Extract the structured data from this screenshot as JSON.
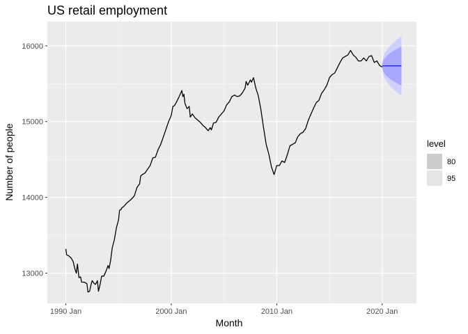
{
  "chart_data": {
    "type": "line",
    "title": "US retail employment",
    "xlabel": "Month",
    "ylabel": "Number of people",
    "x_ticks": [
      {
        "label": "1990 Jan",
        "value": 1990.0
      },
      {
        "label": "2000 Jan",
        "value": 2000.0
      },
      {
        "label": "2010 Jan",
        "value": 2010.0
      },
      {
        "label": "2020 Jan",
        "value": 2020.0
      }
    ],
    "y_ticks": [
      {
        "label": "13000",
        "value": 13000
      },
      {
        "label": "14000",
        "value": 14000
      },
      {
        "label": "15000",
        "value": 15000
      },
      {
        "label": "16000",
        "value": 16000
      }
    ],
    "xlim": [
      1988.25,
      2023.25
    ],
    "ylim": [
      12600,
      16320
    ],
    "grid": true,
    "series": [
      {
        "color": "#000000",
        "points": [
          [
            1990.0,
            13320
          ],
          [
            1990.08,
            13240
          ],
          [
            1990.25,
            13230
          ],
          [
            1990.5,
            13200
          ],
          [
            1990.7,
            13150
          ],
          [
            1990.85,
            13060
          ],
          [
            1991.0,
            13000
          ],
          [
            1991.1,
            13120
          ],
          [
            1991.25,
            12940
          ],
          [
            1991.4,
            12950
          ],
          [
            1991.5,
            12880
          ],
          [
            1991.75,
            12880
          ],
          [
            1992.0,
            12860
          ],
          [
            1992.1,
            12750
          ],
          [
            1992.25,
            12760
          ],
          [
            1992.4,
            12850
          ],
          [
            1992.5,
            12900
          ],
          [
            1992.65,
            12870
          ],
          [
            1992.8,
            12850
          ],
          [
            1992.9,
            12870
          ],
          [
            1993.0,
            12900
          ],
          [
            1993.1,
            12760
          ],
          [
            1993.25,
            12850
          ],
          [
            1993.4,
            12960
          ],
          [
            1993.6,
            12960
          ],
          [
            1993.8,
            13020
          ],
          [
            1994.0,
            13100
          ],
          [
            1994.1,
            13060
          ],
          [
            1994.25,
            13170
          ],
          [
            1994.4,
            13330
          ],
          [
            1994.6,
            13440
          ],
          [
            1994.8,
            13600
          ],
          [
            1995.0,
            13700
          ],
          [
            1995.1,
            13830
          ],
          [
            1995.25,
            13840
          ],
          [
            1995.3,
            13860
          ],
          [
            1995.5,
            13880
          ],
          [
            1995.75,
            13920
          ],
          [
            1996.0,
            13950
          ],
          [
            1996.25,
            13980
          ],
          [
            1996.5,
            14020
          ],
          [
            1996.75,
            14130
          ],
          [
            1997.0,
            14180
          ],
          [
            1997.1,
            14280
          ],
          [
            1997.25,
            14300
          ],
          [
            1997.5,
            14320
          ],
          [
            1997.75,
            14370
          ],
          [
            1998.0,
            14420
          ],
          [
            1998.25,
            14520
          ],
          [
            1998.5,
            14530
          ],
          [
            1998.75,
            14630
          ],
          [
            1999.0,
            14700
          ],
          [
            1999.25,
            14800
          ],
          [
            1999.5,
            14900
          ],
          [
            1999.75,
            15000
          ],
          [
            2000.0,
            15080
          ],
          [
            2000.15,
            15200
          ],
          [
            2000.3,
            15210
          ],
          [
            2000.5,
            15260
          ],
          [
            2000.75,
            15330
          ],
          [
            2001.0,
            15410
          ],
          [
            2001.1,
            15330
          ],
          [
            2001.2,
            15360
          ],
          [
            2001.3,
            15240
          ],
          [
            2001.5,
            15170
          ],
          [
            2001.7,
            15200
          ],
          [
            2001.8,
            15060
          ],
          [
            2002.0,
            15100
          ],
          [
            2002.25,
            15050
          ],
          [
            2002.5,
            15020
          ],
          [
            2002.75,
            14990
          ],
          [
            2003.0,
            14950
          ],
          [
            2003.25,
            14920
          ],
          [
            2003.5,
            14880
          ],
          [
            2003.7,
            14920
          ],
          [
            2003.8,
            14890
          ],
          [
            2004.0,
            14980
          ],
          [
            2004.25,
            14990
          ],
          [
            2004.5,
            15060
          ],
          [
            2004.75,
            15100
          ],
          [
            2005.0,
            15140
          ],
          [
            2005.25,
            15220
          ],
          [
            2005.5,
            15260
          ],
          [
            2005.75,
            15330
          ],
          [
            2006.0,
            15350
          ],
          [
            2006.25,
            15330
          ],
          [
            2006.5,
            15340
          ],
          [
            2006.75,
            15380
          ],
          [
            2007.0,
            15440
          ],
          [
            2007.1,
            15530
          ],
          [
            2007.25,
            15480
          ],
          [
            2007.5,
            15550
          ],
          [
            2007.6,
            15520
          ],
          [
            2007.8,
            15580
          ],
          [
            2008.0,
            15450
          ],
          [
            2008.25,
            15340
          ],
          [
            2008.5,
            15160
          ],
          [
            2008.75,
            14920
          ],
          [
            2009.0,
            14700
          ],
          [
            2009.25,
            14570
          ],
          [
            2009.5,
            14400
          ],
          [
            2009.75,
            14300
          ],
          [
            2010.0,
            14420
          ],
          [
            2010.25,
            14420
          ],
          [
            2010.5,
            14480
          ],
          [
            2010.75,
            14460
          ],
          [
            2011.0,
            14560
          ],
          [
            2011.25,
            14680
          ],
          [
            2011.5,
            14700
          ],
          [
            2011.75,
            14720
          ],
          [
            2012.0,
            14800
          ],
          [
            2012.25,
            14840
          ],
          [
            2012.5,
            14860
          ],
          [
            2012.75,
            14910
          ],
          [
            2013.0,
            15020
          ],
          [
            2013.25,
            15100
          ],
          [
            2013.5,
            15180
          ],
          [
            2013.75,
            15250
          ],
          [
            2014.0,
            15280
          ],
          [
            2014.25,
            15370
          ],
          [
            2014.5,
            15420
          ],
          [
            2014.75,
            15480
          ],
          [
            2015.0,
            15580
          ],
          [
            2015.25,
            15620
          ],
          [
            2015.5,
            15640
          ],
          [
            2015.75,
            15710
          ],
          [
            2016.0,
            15780
          ],
          [
            2016.25,
            15840
          ],
          [
            2016.5,
            15860
          ],
          [
            2016.75,
            15880
          ],
          [
            2017.0,
            15940
          ],
          [
            2017.25,
            15880
          ],
          [
            2017.5,
            15850
          ],
          [
            2017.75,
            15800
          ],
          [
            2018.0,
            15800
          ],
          [
            2018.25,
            15840
          ],
          [
            2018.5,
            15800
          ],
          [
            2018.75,
            15860
          ],
          [
            2019.0,
            15870
          ],
          [
            2019.25,
            15780
          ],
          [
            2019.5,
            15800
          ],
          [
            2019.75,
            15740
          ],
          [
            2020.0,
            15720
          ]
        ]
      }
    ],
    "forecast": {
      "color": "#0000ff",
      "x_start": 2020.0,
      "x_end": 2021.83,
      "mean": 15735,
      "interval_80": [
        [
          2020.0,
          15720,
          15750
        ],
        [
          2021.83,
          15475,
          15990
        ]
      ],
      "interval_95": [
        [
          2020.0,
          15705,
          15765
        ],
        [
          2021.83,
          15340,
          16130
        ]
      ]
    },
    "legend": {
      "position": "right",
      "title": "level",
      "entries": [
        {
          "label": "80",
          "color": "#cccccc"
        },
        {
          "label": "95",
          "color": "#e5e5e5"
        }
      ]
    }
  }
}
